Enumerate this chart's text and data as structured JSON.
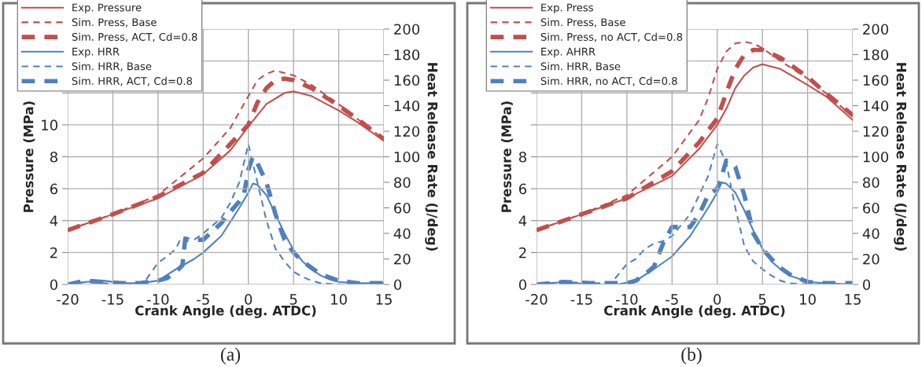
{
  "chart_data": [
    {
      "type": "line",
      "xlabel": "Crank Angle (deg. ATDC)",
      "ylabel": "Pressure (MPa)",
      "y2label": "Heat Release Rate (J/deg)",
      "xlim": [
        -20,
        15
      ],
      "xticks": [
        -20,
        -15,
        -10,
        -5,
        0,
        5,
        10,
        15
      ],
      "ylim": [
        0,
        16
      ],
      "yticks": [
        0,
        2,
        4,
        6,
        8,
        10,
        {
          "value": 12,
          "label": null
        },
        {
          "value": 14,
          "label": null
        },
        {
          "value": 16,
          "label": null
        }
      ],
      "y2lim": [
        0,
        200
      ],
      "y2ticks": [
        0,
        20,
        40,
        60,
        80,
        100,
        120,
        140,
        160,
        180,
        200
      ],
      "grid": true,
      "legend": "top left",
      "annotations": [
        "(a)"
      ],
      "series": [
        {
          "name": "Exp. Pressure",
          "color": "#c0504d",
          "line_style": "solid",
          "axis": "y",
          "x": [
            -20,
            -15,
            -10,
            -5,
            -2,
            0,
            2,
            4,
            5,
            7,
            10,
            12,
            15
          ],
          "values": [
            3.4,
            4.4,
            5.4,
            6.9,
            8.4,
            9.9,
            11.3,
            12.0,
            12.1,
            11.8,
            10.9,
            10.2,
            9.0
          ]
        },
        {
          "name": "Sim. Press, Base",
          "color": "#c0504d",
          "line_style": "dashed",
          "axis": "y",
          "x": [
            -20,
            -15,
            -10,
            -5,
            -2,
            0,
            1,
            2,
            3,
            5,
            7,
            10,
            12,
            15
          ],
          "values": [
            3.4,
            4.4,
            5.6,
            7.9,
            9.8,
            11.8,
            12.8,
            13.2,
            13.4,
            13.1,
            12.5,
            11.3,
            10.4,
            9.1
          ]
        },
        {
          "name": "Sim. Press, ACT, Cd=0.8",
          "color": "#c0504d",
          "line_style": "dashed",
          "axis": "y",
          "x": [
            -20,
            -15,
            -10,
            -5,
            -2,
            0,
            1,
            2,
            3,
            4,
            5,
            7,
            10,
            12,
            15
          ],
          "values": [
            3.4,
            4.4,
            5.5,
            7.0,
            8.8,
            10.0,
            11.4,
            12.3,
            12.8,
            12.9,
            12.8,
            12.3,
            11.2,
            10.4,
            9.1
          ]
        },
        {
          "name": "Exp. HRR",
          "color": "#4f81bd",
          "line_style": "solid",
          "axis": "y2",
          "x": [
            -20,
            -18,
            -16,
            -14,
            -12,
            -10,
            -8,
            -6,
            -5,
            -3,
            -1,
            0,
            0.5,
            1,
            2,
            3,
            4,
            5,
            6,
            7,
            8,
            9,
            10,
            12,
            15
          ],
          "values": [
            0,
            2,
            3,
            1,
            1,
            3,
            12,
            20,
            25,
            38,
            60,
            72,
            79,
            78,
            70,
            55,
            40,
            27,
            18,
            12,
            7,
            4,
            2,
            1,
            1
          ]
        },
        {
          "name": "Sim. HRR, Base",
          "color": "#4f81bd",
          "line_style": "dashed",
          "axis": "y2",
          "x": [
            -20,
            -18,
            -16,
            -14,
            -12,
            -11.5,
            -10,
            -9,
            -8,
            -7.5,
            -7,
            -6,
            -5,
            -3,
            -2,
            -1,
            0,
            0.5,
            1,
            2,
            3,
            4,
            5,
            6,
            7,
            8,
            10,
            15
          ],
          "values": [
            0,
            2,
            1,
            0,
            1,
            2,
            17,
            22,
            28,
            36,
            37,
            35,
            40,
            52,
            64,
            80,
            110,
            95,
            80,
            50,
            28,
            18,
            10,
            6,
            3,
            1,
            0,
            0
          ]
        },
        {
          "name": "Sim. HRR, ACT, Cd=0.8",
          "color": "#4f81bd",
          "line_style": "dashed",
          "axis": "y2",
          "x": [
            -20,
            -18,
            -16,
            -14,
            -12,
            -10,
            -9,
            -8,
            -7.3,
            -7,
            -6,
            -5,
            -3,
            -2,
            -1,
            -0.5,
            0,
            0.5,
            1,
            2,
            3,
            4,
            5,
            6,
            7,
            8,
            10,
            12,
            15
          ],
          "values": [
            0,
            3,
            2,
            1,
            1,
            3,
            5,
            10,
            15,
            35,
            35,
            35,
            48,
            57,
            65,
            70,
            90,
            100,
            95,
            80,
            55,
            35,
            25,
            18,
            13,
            8,
            3,
            1,
            1
          ]
        }
      ]
    },
    {
      "type": "line",
      "xlabel": "Crank Angle (deg. ATDC)",
      "ylabel": "Pressure (MPa)",
      "y2label": "Heat Release Rate (J/deg)",
      "xlim": [
        -20,
        15
      ],
      "xticks": [
        -20,
        -15,
        -10,
        -5,
        0,
        5,
        10,
        15
      ],
      "ylim": [
        0,
        16
      ],
      "yticks": [
        0,
        2,
        4,
        6,
        8,
        {
          "value": 10,
          "label": null
        },
        {
          "value": 12,
          "label": null
        },
        {
          "value": 14,
          "label": null
        },
        {
          "value": 16,
          "label": null
        }
      ],
      "y2lim": [
        0,
        200
      ],
      "y2ticks": [
        0,
        20,
        40,
        60,
        80,
        100,
        120,
        140,
        160,
        180,
        200
      ],
      "grid": true,
      "legend": "top left",
      "annotations": [
        "(b)"
      ],
      "series": [
        {
          "name": "Exp. Press",
          "color": "#c0504d",
          "line_style": "solid",
          "axis": "y",
          "x": [
            -20,
            -15,
            -10,
            -5,
            -2,
            0,
            1,
            2,
            3,
            4,
            5,
            7,
            10,
            12,
            15
          ],
          "values": [
            3.4,
            4.4,
            5.4,
            6.8,
            8.5,
            10.0,
            11.0,
            12.3,
            13.1,
            13.6,
            13.8,
            13.5,
            12.5,
            11.8,
            10.3
          ]
        },
        {
          "name": "Sim. Press, Base",
          "color": "#c0504d",
          "line_style": "dashed",
          "axis": "y",
          "x": [
            -20,
            -15,
            -10,
            -5,
            -2,
            -1,
            0,
            1,
            2,
            3,
            4,
            5,
            7,
            10,
            12,
            15
          ],
          "values": [
            3.4,
            4.4,
            5.6,
            8.0,
            10.3,
            11.7,
            13.5,
            14.6,
            15.1,
            15.2,
            15.1,
            14.8,
            14.0,
            12.9,
            12.0,
            10.5
          ]
        },
        {
          "name": "Sim. Press, no ACT, Cd=0.8",
          "color": "#c0504d",
          "line_style": "dashed",
          "axis": "y",
          "x": [
            -20,
            -15,
            -10,
            -5,
            -2,
            0,
            1,
            2,
            3,
            4,
            5,
            7,
            10,
            12,
            15
          ],
          "values": [
            3.4,
            4.4,
            5.4,
            7.1,
            8.9,
            10.4,
            12.0,
            13.5,
            14.4,
            14.7,
            14.7,
            14.2,
            13.0,
            12.0,
            10.6
          ]
        },
        {
          "name": "Exp. AHRR",
          "color": "#4f81bd",
          "line_style": "solid",
          "axis": "y2",
          "x": [
            -20,
            -17,
            -14,
            -11,
            -9,
            -7,
            -5,
            -3,
            -1,
            0,
            0.5,
            1,
            2,
            3,
            4,
            5,
            6,
            7,
            8,
            10,
            12,
            15
          ],
          "values": [
            0,
            2,
            0,
            0,
            3,
            12,
            22,
            38,
            60,
            72,
            80,
            79,
            72,
            58,
            42,
            28,
            18,
            12,
            7,
            2,
            1,
            0
          ]
        },
        {
          "name": "Sim. HRR, Base",
          "color": "#4f81bd",
          "line_style": "dashed",
          "axis": "y2",
          "x": [
            -20,
            -17,
            -14,
            -12,
            -11.5,
            -10,
            -9,
            -8,
            -7,
            -6,
            -5,
            -3,
            -1,
            0,
            0.5,
            1,
            2,
            3,
            4,
            5,
            6,
            7,
            8,
            10,
            15
          ],
          "values": [
            0,
            2,
            1,
            1,
            3,
            16,
            20,
            28,
            32,
            34,
            38,
            55,
            85,
            110,
            103,
            95,
            60,
            30,
            18,
            12,
            7,
            3,
            1,
            0,
            0
          ]
        },
        {
          "name": "Sim. HRR, no ACT, Cd=0.8",
          "color": "#4f81bd",
          "line_style": "dashed",
          "axis": "y2",
          "x": [
            -20,
            -17,
            -14,
            -12,
            -10,
            -9,
            -8,
            -7,
            -6,
            -5,
            -4,
            -3,
            -2,
            -1,
            0,
            0.5,
            1,
            2,
            3,
            4,
            5,
            6,
            7,
            8,
            10,
            12,
            15
          ],
          "values": [
            0,
            2,
            1,
            1,
            1,
            3,
            8,
            14,
            32,
            45,
            45,
            45,
            55,
            70,
            75,
            85,
            97,
            92,
            70,
            40,
            28,
            20,
            13,
            8,
            2,
            1,
            1
          ]
        }
      ]
    }
  ]
}
